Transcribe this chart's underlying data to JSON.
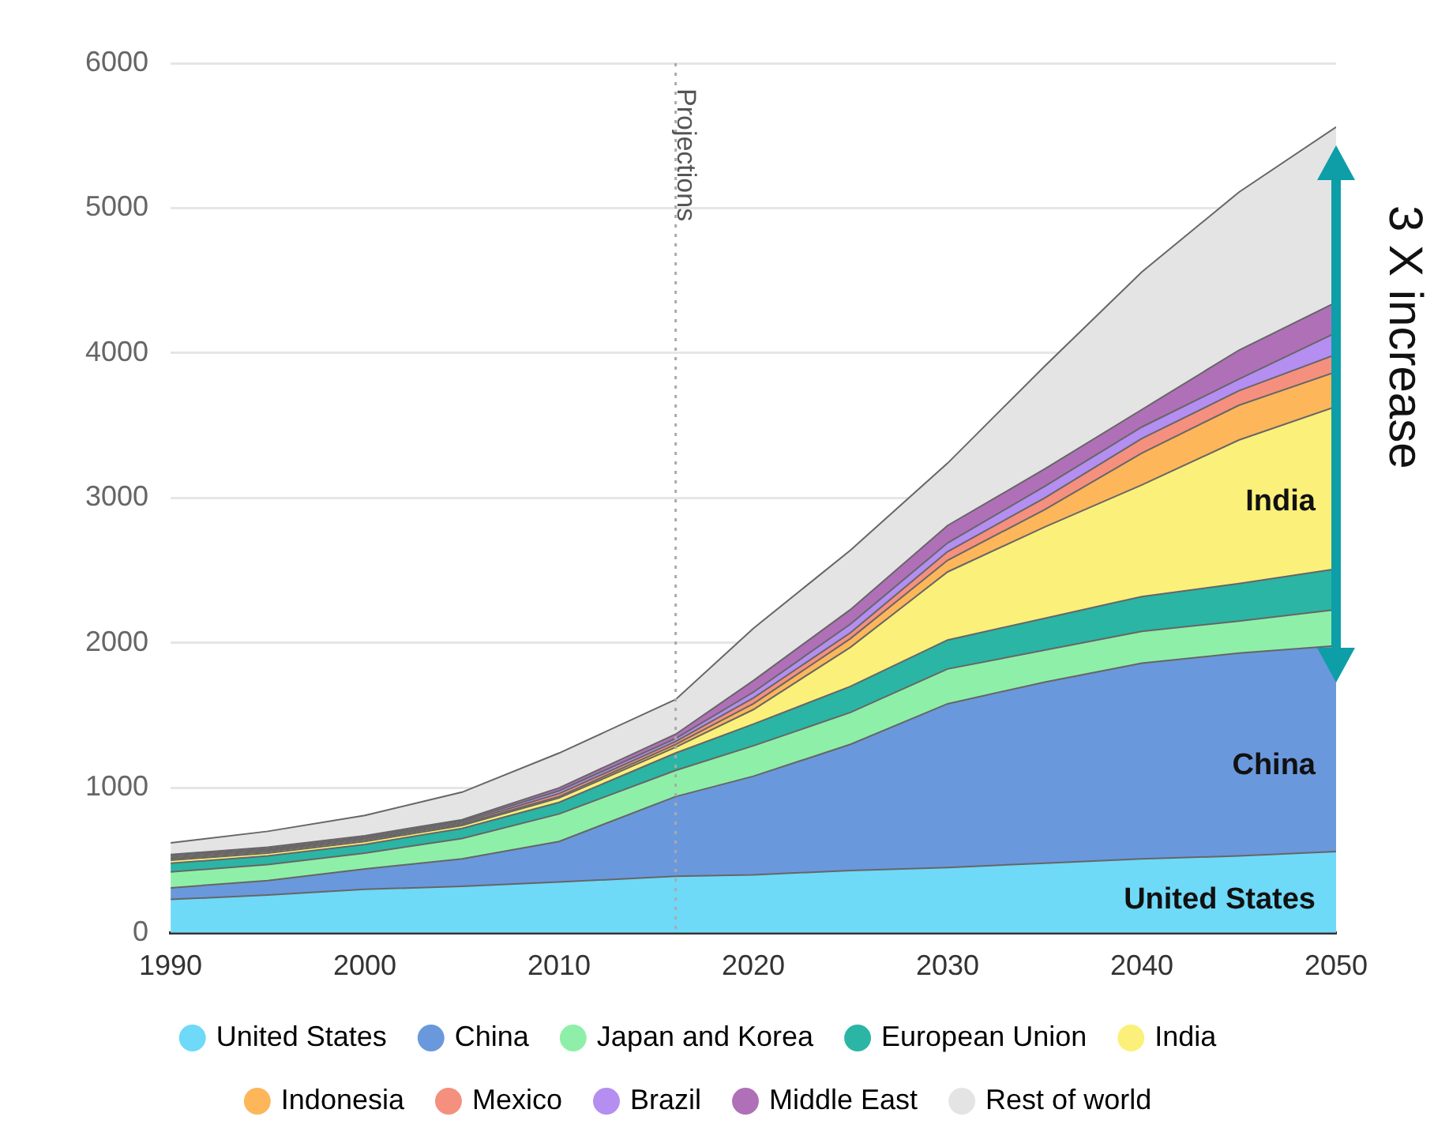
{
  "chart_data": {
    "type": "area",
    "stacked": true,
    "x": [
      1990,
      1995,
      2000,
      2005,
      2010,
      2016,
      2020,
      2025,
      2030,
      2035,
      2040,
      2045,
      2050
    ],
    "series": [
      {
        "name": "United States",
        "color": "#6fd9f8",
        "values": [
          230,
          260,
          300,
          320,
          350,
          390,
          400,
          430,
          450,
          480,
          510,
          530,
          560
        ]
      },
      {
        "name": "China",
        "color": "#6a98dc",
        "values": [
          80,
          100,
          140,
          190,
          280,
          550,
          680,
          870,
          1130,
          1250,
          1350,
          1400,
          1420
        ]
      },
      {
        "name": "Japan and Korea",
        "color": "#8ef0a8",
        "values": [
          110,
          110,
          110,
          140,
          190,
          180,
          210,
          220,
          240,
          220,
          220,
          220,
          250
        ]
      },
      {
        "name": "European Union",
        "color": "#2bb5a5",
        "values": [
          60,
          60,
          60,
          70,
          80,
          120,
          150,
          180,
          200,
          220,
          240,
          260,
          280
        ]
      },
      {
        "name": "India",
        "color": "#fbf07a",
        "values": [
          20,
          20,
          20,
          20,
          30,
          40,
          100,
          270,
          470,
          630,
          770,
          990,
          1120
        ]
      },
      {
        "name": "Indonesia",
        "color": "#fdb65a",
        "values": [
          10,
          10,
          10,
          10,
          10,
          20,
          40,
          60,
          80,
          120,
          220,
          240,
          240
        ]
      },
      {
        "name": "Mexico",
        "color": "#f5907e",
        "values": [
          10,
          10,
          10,
          10,
          20,
          20,
          40,
          40,
          60,
          80,
          100,
          100,
          120
        ]
      },
      {
        "name": "Brazil",
        "color": "#b48ef0",
        "values": [
          10,
          10,
          10,
          10,
          20,
          20,
          40,
          60,
          60,
          80,
          80,
          80,
          150
        ]
      },
      {
        "name": "Middle East",
        "color": "#b070b8",
        "values": [
          10,
          10,
          10,
          10,
          20,
          30,
          80,
          100,
          120,
          120,
          120,
          200,
          210
        ]
      },
      {
        "name": "Rest of world",
        "color": "#e4e4e4",
        "values": [
          80,
          110,
          140,
          190,
          240,
          240,
          360,
          410,
          430,
          710,
          950,
          1090,
          1210
        ]
      }
    ],
    "xlim": [
      1990,
      2050
    ],
    "xticks": [
      1990,
      2000,
      2010,
      2020,
      2030,
      2040,
      2050
    ],
    "ylim": [
      0,
      6000
    ],
    "yticks": [
      0,
      1000,
      2000,
      3000,
      4000,
      5000,
      6000
    ],
    "grid": "y",
    "legend": "bottom",
    "ref_lines": [
      {
        "axis": "x",
        "value": 2016,
        "label": "Projections",
        "line_style": "dotted"
      }
    ],
    "annotations": [
      "India",
      "China",
      "United States",
      "3 X increase"
    ]
  }
}
